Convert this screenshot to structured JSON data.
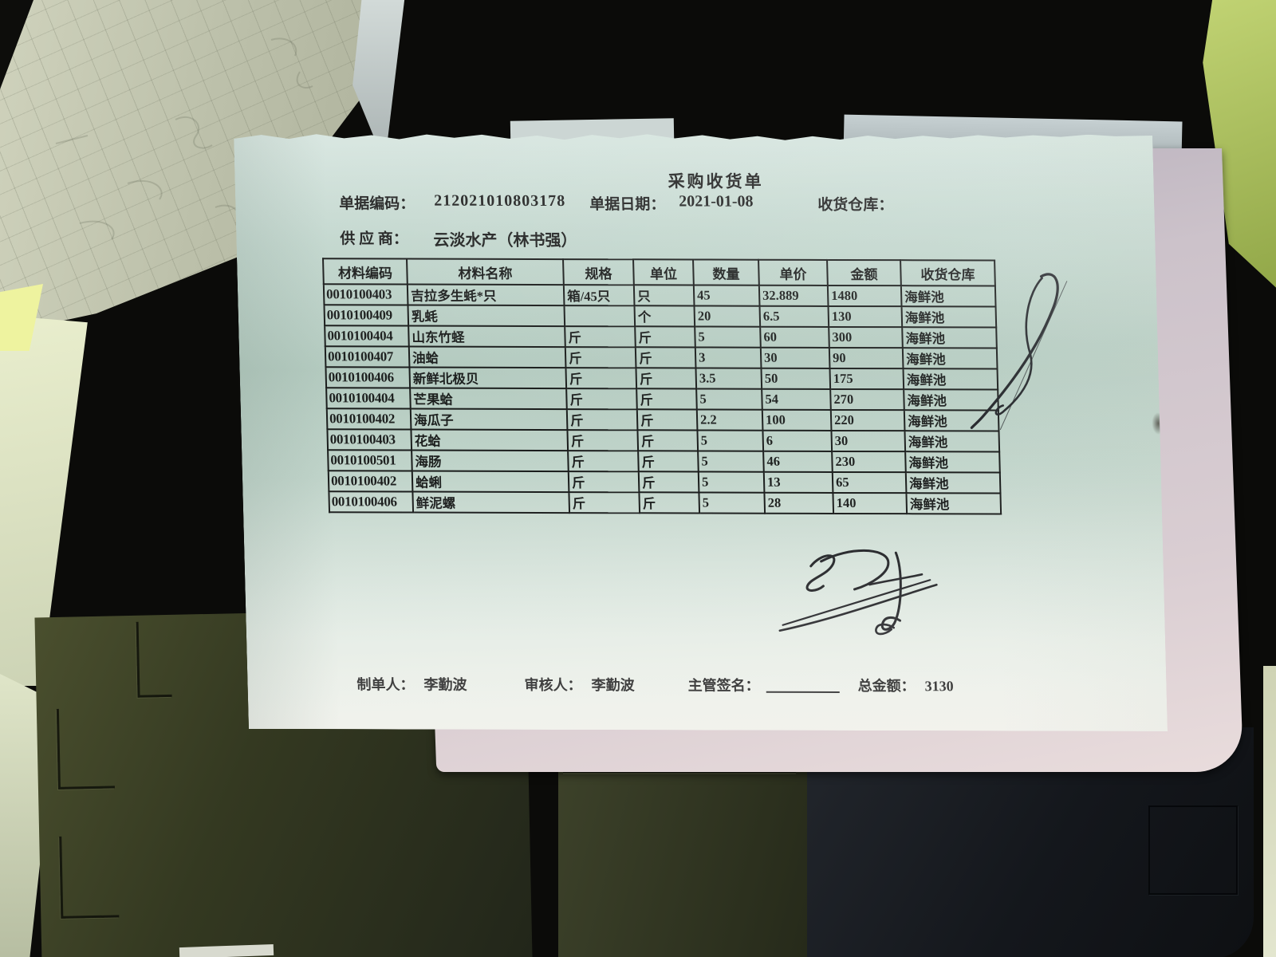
{
  "document": {
    "title": "采购收货单",
    "doc_code_label": "单据编码：",
    "doc_code": "212021010803178",
    "doc_date_label": "单据日期：",
    "doc_date": "2021-01-08",
    "warehouse_label": "收货仓库：",
    "supplier_label": "供 应 商：",
    "supplier": "云淡水产（林书强）",
    "table": {
      "headers": [
        "材料编码",
        "材料名称",
        "规格",
        "单位",
        "数量",
        "单价",
        "金额",
        "收货仓库"
      ],
      "rows": [
        [
          "0010100403",
          "吉拉多生蚝*只",
          "箱/45只",
          "只",
          "45",
          "32.889",
          "1480",
          "海鲜池"
        ],
        [
          "0010100409",
          "乳蚝",
          "",
          "个",
          "20",
          "6.5",
          "130",
          "海鲜池"
        ],
        [
          "0010100404",
          "山东竹蛏",
          "斤",
          "斤",
          "5",
          "60",
          "300",
          "海鲜池"
        ],
        [
          "0010100407",
          "油蛤",
          "斤",
          "斤",
          "3",
          "30",
          "90",
          "海鲜池"
        ],
        [
          "0010100406",
          "新鲜北极贝",
          "斤",
          "斤",
          "3.5",
          "50",
          "175",
          "海鲜池"
        ],
        [
          "0010100404",
          "芒果蛤",
          "斤",
          "斤",
          "5",
          "54",
          "270",
          "海鲜池"
        ],
        [
          "0010100402",
          "海瓜子",
          "斤",
          "斤",
          "2.2",
          "100",
          "220",
          "海鲜池"
        ],
        [
          "0010100403",
          "花蛤",
          "斤",
          "斤",
          "5",
          "6",
          "30",
          "海鲜池"
        ],
        [
          "0010100501",
          "海肠",
          "斤",
          "斤",
          "5",
          "46",
          "230",
          "海鲜池"
        ],
        [
          "0010100402",
          "蛤蜊",
          "斤",
          "斤",
          "5",
          "13",
          "65",
          "海鲜池"
        ],
        [
          "0010100406",
          "鲜泥螺",
          "斤",
          "斤",
          "5",
          "28",
          "140",
          "海鲜池"
        ]
      ]
    },
    "footer": {
      "maker_label": "制单人：",
      "maker": "李勤波",
      "reviewer_label": "审核人：",
      "reviewer": "李勤波",
      "supervisor_label": "主管签名：",
      "total_label": "总金额：",
      "total": "3130"
    }
  },
  "colors": {
    "receipt_paper": "#c9dcd2",
    "ink": "#1b1b1b",
    "pen": "#1c1c22",
    "under_paper_pink": "#d9cdd2",
    "scrap_paper": "#bcc0aa",
    "desk_machine_olive": "#343921",
    "desk_machine_dark": "#14171c",
    "background": "#0b0b09",
    "highlight_green": "#c3d575"
  }
}
